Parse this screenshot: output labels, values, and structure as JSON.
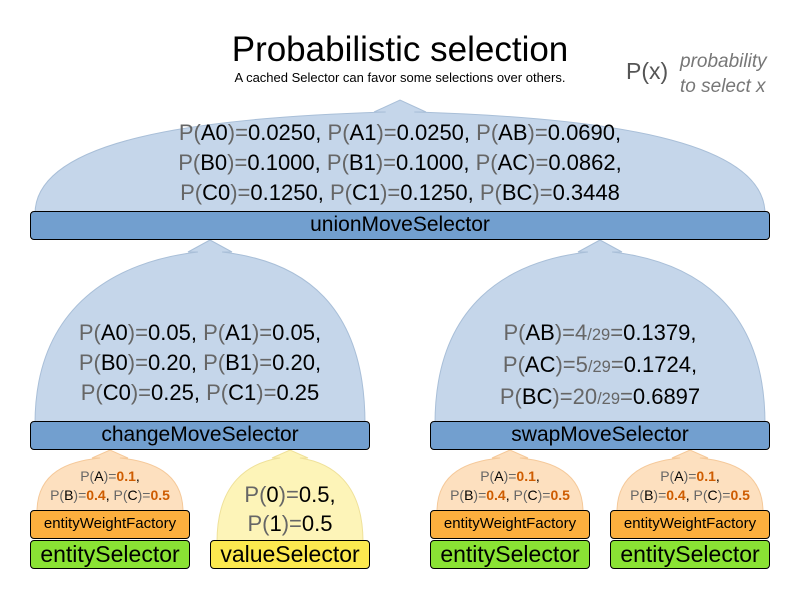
{
  "header": {
    "title": "Probabilistic selection",
    "subtitle": "A cached Selector can favor some selections over others."
  },
  "legend": {
    "symbol": "P(x)",
    "description_line1": "probability",
    "description_line2": "to select x"
  },
  "colors": {
    "move_selector": "#729fcf",
    "move_dome": "#c5d6ea",
    "weight_factory": "#fcaf3e",
    "weight_dome": "#fde0bf",
    "entity_selector": "#8ae234",
    "value_selector": "#fce94f",
    "value_dome": "#fdf4b8",
    "highlight_value": "#ce5c00"
  },
  "union": {
    "label": "unionMoveSelector",
    "lines": [
      [
        {
          "event": "A0",
          "value": "0.0250"
        },
        {
          "event": "A1",
          "value": "0.0250"
        },
        {
          "event": "AB",
          "value": "0.0690"
        }
      ],
      [
        {
          "event": "B0",
          "value": "0.1000"
        },
        {
          "event": "B1",
          "value": "0.1000"
        },
        {
          "event": "AC",
          "value": "0.0862"
        }
      ],
      [
        {
          "event": "C0",
          "value": "0.1250"
        },
        {
          "event": "C1",
          "value": "0.1250"
        },
        {
          "event": "BC",
          "value": "0.3448"
        }
      ]
    ]
  },
  "change": {
    "label": "changeMoveSelector",
    "lines": [
      [
        {
          "event": "A0",
          "value": "0.05"
        },
        {
          "event": "A1",
          "value": "0.05"
        }
      ],
      [
        {
          "event": "B0",
          "value": "0.20"
        },
        {
          "event": "B1",
          "value": "0.20"
        }
      ],
      [
        {
          "event": "C0",
          "value": "0.25"
        },
        {
          "event": "C1",
          "value": "0.25"
        }
      ]
    ]
  },
  "swap": {
    "label": "swapMoveSelector",
    "lines": [
      [
        {
          "event": "AB",
          "numerator": "4",
          "denominator": "/29",
          "value": "0.1379"
        }
      ],
      [
        {
          "event": "AC",
          "numerator": "5",
          "denominator": "/29",
          "value": "0.1724"
        }
      ],
      [
        {
          "event": "BC",
          "numerator": "20",
          "denominator": "/29",
          "value": "0.6897"
        }
      ]
    ]
  },
  "entity_weights": {
    "lines": [
      [
        {
          "event": "A",
          "value": "0.1"
        }
      ],
      [
        {
          "event": "B",
          "value": "0.4"
        },
        {
          "event": "C",
          "value": "0.5"
        }
      ]
    ]
  },
  "value_probs": {
    "lines": [
      [
        {
          "event": "0",
          "value": "0.5"
        }
      ],
      [
        {
          "event": "1",
          "value": "0.5"
        }
      ]
    ]
  },
  "leaves": {
    "weight_factory_label": "entityWeightFactory",
    "entity_selector_label": "entitySelector",
    "value_selector_label": "valueSelector"
  }
}
